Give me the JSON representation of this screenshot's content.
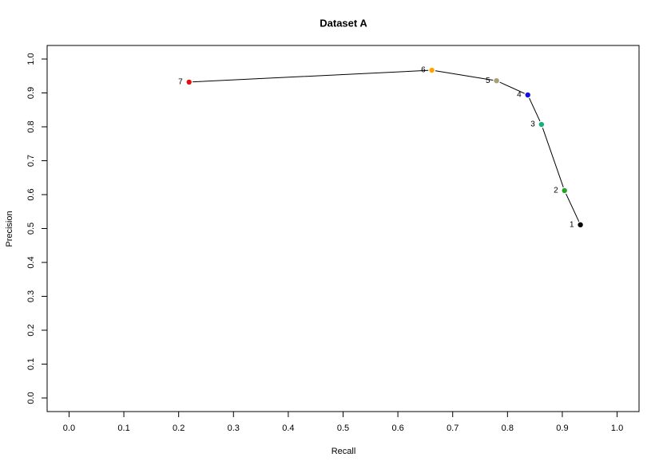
{
  "chart_data": {
    "type": "line",
    "title": "Dataset A",
    "x_label": "Recall",
    "y_label": "Precision",
    "x": [
      0.933,
      0.904,
      0.862,
      0.837,
      0.78,
      0.662,
      0.219
    ],
    "values": [
      0.511,
      0.612,
      0.807,
      0.894,
      0.936,
      0.967,
      0.932
    ],
    "point_labels": [
      "1",
      "2",
      "3",
      "4",
      "5",
      "6",
      "7"
    ],
    "colors": [
      "#000000",
      "#1fa51f",
      "#12b080",
      "#1010e0",
      "#a8a070",
      "#ffa500",
      "#e01010"
    ],
    "line_color": "#000000",
    "xlim": [
      -0.04,
      1.04
    ],
    "ylim": [
      -0.04,
      1.04
    ],
    "xticks": [
      {
        "value": 0,
        "label": "0.0"
      },
      0.1,
      0.2,
      0.3,
      0.4,
      0.5,
      0.6,
      0.7,
      0.8,
      0.9,
      {
        "value": 1,
        "label": "1.0"
      }
    ],
    "yticks": [
      {
        "value": 0,
        "label": "0.0"
      },
      0.1,
      0.2,
      0.3,
      0.4,
      0.5,
      0.6,
      0.7,
      0.8,
      0.9,
      {
        "value": 1,
        "label": "1.0"
      }
    ]
  }
}
